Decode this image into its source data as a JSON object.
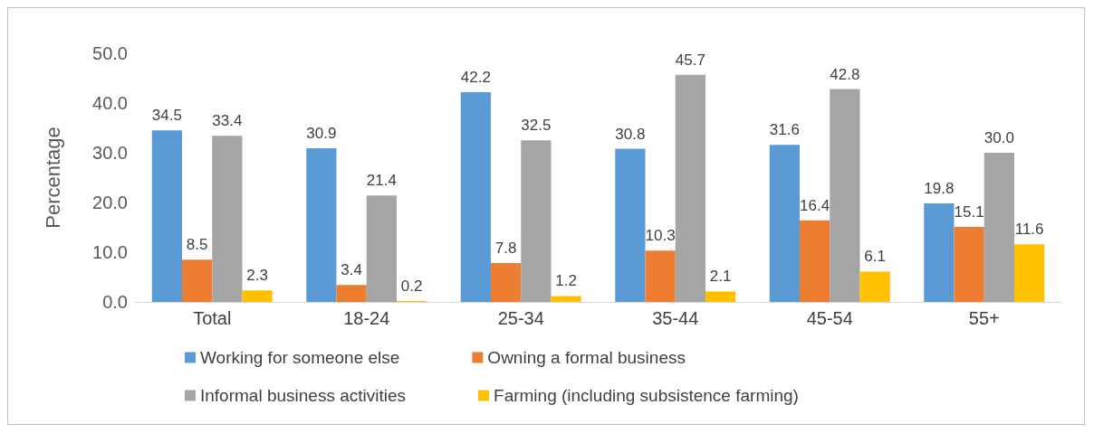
{
  "chart_data": {
    "type": "bar",
    "ylabel": "Percentage",
    "categories": [
      "Total",
      "18-24",
      "25-34",
      "35-44",
      "45-54",
      "55+"
    ],
    "series": [
      {
        "name": "Working for someone else",
        "color": "#5b9bd5",
        "values": [
          34.5,
          30.9,
          42.2,
          30.8,
          31.6,
          19.8
        ],
        "value_labels": [
          "34.5",
          "30.9",
          "42.2",
          "30.8",
          "31.6",
          "19.8"
        ]
      },
      {
        "name": "Owning a formal business",
        "color": "#ed7d31",
        "values": [
          8.5,
          3.4,
          7.8,
          10.3,
          16.4,
          15.1
        ],
        "value_labels": [
          "8.5",
          "3.4",
          "7.8",
          "10.3",
          "16.4",
          "15.1"
        ]
      },
      {
        "name": "Informal business activities",
        "color": "#a5a5a5",
        "values": [
          33.4,
          21.4,
          32.5,
          45.7,
          42.8,
          30.0
        ],
        "value_labels": [
          "33.4",
          "21.4",
          "32.5",
          "45.7",
          "42.8",
          "30.0"
        ]
      },
      {
        "name": "Farming (including subsistence farming)",
        "color": "#ffc000",
        "values": [
          2.3,
          0.2,
          1.2,
          2.1,
          6.1,
          11.6
        ],
        "value_labels": [
          "2.3",
          "0.2",
          "1.2",
          "2.1",
          "6.1",
          "11.6"
        ]
      }
    ],
    "ylim": [
      0,
      50
    ],
    "yticks": [
      {
        "value": 0,
        "label": "0.0"
      },
      {
        "value": 10,
        "label": "10.0"
      },
      {
        "value": 20,
        "label": "20.0"
      },
      {
        "value": 30,
        "label": "30.0"
      },
      {
        "value": 40,
        "label": "40.0"
      },
      {
        "value": 50,
        "label": "50.0"
      }
    ],
    "grid": false,
    "legend": "bottom"
  }
}
